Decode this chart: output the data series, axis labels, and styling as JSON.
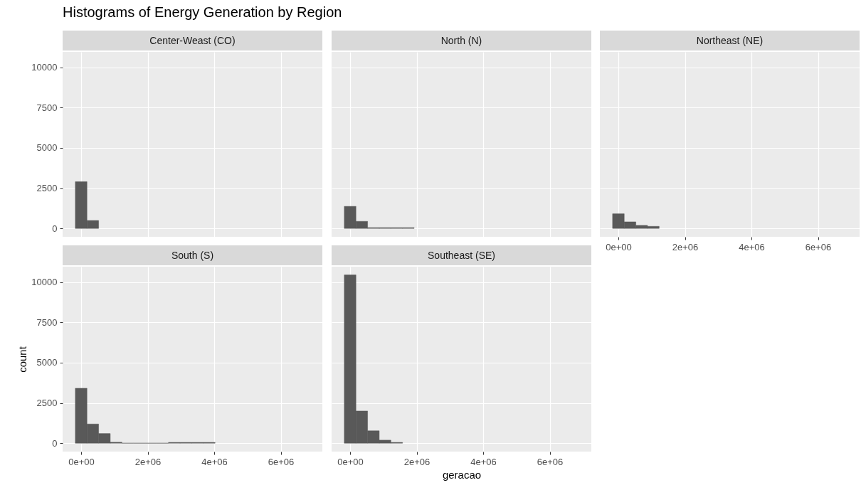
{
  "chart_data": [
    {
      "type": "histogram",
      "title": "Center-Weast (CO)",
      "annotations": [
        "Histograms of Energy Generation by Region"
      ],
      "color": "#595959",
      "bins": [
        -175000,
        175000,
        525000
      ],
      "values": [
        2900,
        490
      ],
      "xlim": [
        -557000,
        7250000
      ],
      "ylim": [
        -520,
        10950
      ],
      "xticks": [
        {
          "value": 0,
          "label": null
        },
        {
          "value": 2000000,
          "label": null
        },
        {
          "value": 4000000,
          "label": null
        },
        {
          "value": 6000000,
          "label": null
        }
      ],
      "yticks": [
        0,
        2500,
        5000,
        7500,
        10000
      ],
      "grid": true,
      "tick_labels": "y"
    },
    {
      "type": "histogram",
      "title": "North (N)",
      "color": "#595959",
      "bins": [
        -175000,
        175000,
        525000,
        875000,
        1225000,
        1575000,
        1925000
      ],
      "values": [
        1370,
        440,
        50,
        50,
        50,
        50
      ],
      "xlim": [
        -557000,
        7250000
      ],
      "ylim": [
        -520,
        10950
      ],
      "xticks": [
        {
          "value": 0,
          "label": null
        },
        {
          "value": 2000000,
          "label": null
        },
        {
          "value": 4000000,
          "label": null
        },
        {
          "value": 6000000,
          "label": null
        }
      ],
      "yticks": [
        0,
        2500,
        5000,
        7500,
        10000
      ],
      "grid": true,
      "tick_labels": false
    },
    {
      "type": "histogram",
      "title": "Northeast (NE)",
      "color": "#595959",
      "bins": [
        -175000,
        175000,
        525000,
        875000,
        1225000
      ],
      "values": [
        910,
        410,
        190,
        130
      ],
      "xlim": [
        -557000,
        7250000
      ],
      "ylim": [
        -520,
        10950
      ],
      "xticks": [
        {
          "value": 0,
          "label": "0e+00"
        },
        {
          "value": 2000000,
          "label": "2e+06"
        },
        {
          "value": 4000000,
          "label": "4e+06"
        },
        {
          "value": 6000000,
          "label": "6e+06"
        }
      ],
      "yticks": [
        0,
        2500,
        5000,
        7500,
        10000
      ],
      "grid": true,
      "tick_labels": "x"
    },
    {
      "type": "histogram",
      "title": "South (S)",
      "ylabel": "count",
      "color": "#595959",
      "bins": [
        -175000,
        175000,
        525000,
        875000,
        1225000,
        1575000,
        1925000,
        2275000,
        2625000,
        2975000,
        3325000,
        3675000,
        4025000
      ],
      "values": [
        3410,
        1190,
        600,
        60,
        0,
        0,
        0,
        0,
        50,
        50,
        50,
        50
      ],
      "xlim": [
        -557000,
        7250000
      ],
      "ylim": [
        -520,
        10950
      ],
      "xticks": [
        {
          "value": 0,
          "label": "0e+00"
        },
        {
          "value": 2000000,
          "label": "2e+06"
        },
        {
          "value": 4000000,
          "label": "4e+06"
        },
        {
          "value": 6000000,
          "label": "6e+06"
        }
      ],
      "yticks": [
        0,
        2500,
        5000,
        7500,
        10000
      ],
      "grid": true
    },
    {
      "type": "histogram",
      "title": "Southeast (SE)",
      "xlabel": "geracao",
      "color": "#595959",
      "bins": [
        -175000,
        175000,
        525000,
        875000,
        1225000,
        1575000
      ],
      "values": [
        10440,
        2000,
        770,
        190,
        50
      ],
      "xlim": [
        -557000,
        7250000
      ],
      "ylim": [
        -520,
        10950
      ],
      "xticks": [
        {
          "value": 0,
          "label": "0e+00"
        },
        {
          "value": 2000000,
          "label": "2e+06"
        },
        {
          "value": 4000000,
          "label": "4e+06"
        },
        {
          "value": 6000000,
          "label": "6e+06"
        }
      ],
      "yticks": [
        0,
        2500,
        5000,
        7500,
        10000
      ],
      "grid": true,
      "tick_labels": "x"
    }
  ]
}
